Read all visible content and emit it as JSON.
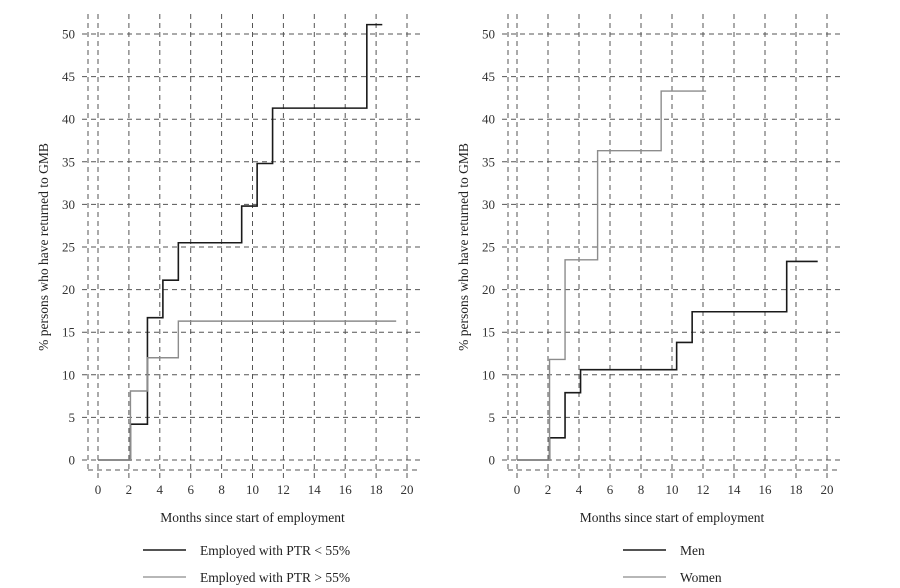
{
  "chart_data": [
    {
      "type": "line",
      "step": true,
      "xlabel": "Months since start of employment",
      "ylabel": "% persons who have returned to GMB",
      "xlim": [
        0,
        20
      ],
      "ylim": [
        0,
        50
      ],
      "xticks": [
        "0",
        "2",
        "4",
        "6",
        "8",
        "10",
        "12",
        "14",
        "16",
        "18",
        "20"
      ],
      "yticks": [
        "0",
        "5",
        "10",
        "15",
        "20",
        "25",
        "30",
        "35",
        "40",
        "45",
        "50"
      ],
      "grid": true,
      "legend_position": "bottom",
      "series": [
        {
          "name": "Employed with PTR < 55%",
          "color": "#1a1a1a",
          "x": [
            0,
            2.1,
            3.2,
            4.2,
            5.2,
            9.3,
            10.3,
            11.3,
            17.4,
            18.4
          ],
          "y": [
            0,
            4.2,
            16.7,
            21.1,
            25.5,
            29.8,
            34.8,
            41.3,
            51.1,
            51.1
          ]
        },
        {
          "name": "Employed with PTR > 55%",
          "color": "#8c8c8c",
          "x": [
            0,
            2.1,
            3.2,
            5.2,
            19.3
          ],
          "y": [
            0,
            8.1,
            12.0,
            16.3,
            16.3
          ]
        }
      ]
    },
    {
      "type": "line",
      "step": true,
      "xlabel": "Months since start of employment",
      "ylabel": "% persons who have returned to GMB",
      "xlim": [
        0,
        20
      ],
      "ylim": [
        0,
        50
      ],
      "xticks": [
        "0",
        "2",
        "4",
        "6",
        "8",
        "10",
        "12",
        "14",
        "16",
        "18",
        "20"
      ],
      "yticks": [
        "0",
        "5",
        "10",
        "15",
        "20",
        "25",
        "30",
        "35",
        "40",
        "45",
        "50"
      ],
      "grid": true,
      "legend_position": "bottom",
      "series": [
        {
          "name": "Men",
          "color": "#1a1a1a",
          "x": [
            0,
            2.1,
            3.1,
            4.1,
            10.3,
            11.3,
            17.4,
            19.4
          ],
          "y": [
            0,
            2.6,
            7.9,
            10.6,
            13.8,
            17.4,
            23.3,
            23.3
          ]
        },
        {
          "name": "Women",
          "color": "#8c8c8c",
          "x": [
            0,
            2.1,
            3.1,
            5.2,
            9.3,
            12.2
          ],
          "y": [
            0,
            11.8,
            23.5,
            36.3,
            43.3,
            43.3
          ]
        }
      ]
    }
  ]
}
